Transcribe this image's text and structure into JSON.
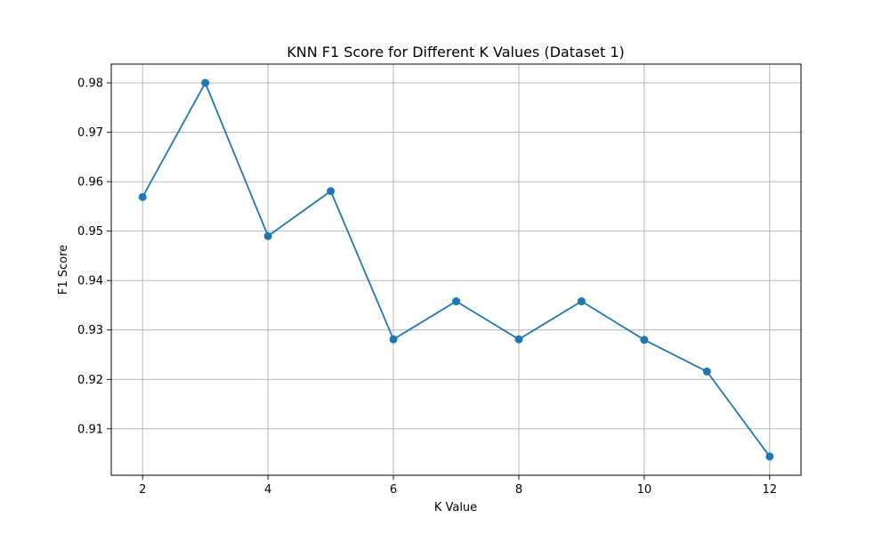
{
  "chart_data": {
    "type": "line",
    "title": "KNN F1 Score for Different K Values (Dataset 1)",
    "xlabel": "K Value",
    "ylabel": "F1 Score",
    "x": [
      2,
      3,
      4,
      5,
      6,
      7,
      8,
      9,
      10,
      11,
      12
    ],
    "series": [
      {
        "values": [
          0.9569,
          0.98,
          0.949,
          0.9581,
          0.9281,
          0.9358,
          0.9281,
          0.9358,
          0.928,
          0.9216,
          0.9044
        ],
        "color": "#1f77b4",
        "marker": "circle"
      }
    ],
    "xlim": [
      1.5,
      12.5
    ],
    "ylim": [
      0.9006,
      0.9838
    ],
    "xticks": [
      2,
      4,
      6,
      8,
      10,
      12
    ],
    "yticks": [
      0.91,
      0.92,
      0.93,
      0.94,
      0.95,
      0.96,
      0.97,
      0.98
    ],
    "xtick_labels": [
      "2",
      "4",
      "6",
      "8",
      "10",
      "12"
    ],
    "ytick_labels": [
      "0.91",
      "0.92",
      "0.93",
      "0.94",
      "0.95",
      "0.96",
      "0.97",
      "0.98"
    ],
    "grid": true,
    "legend": "none"
  }
}
